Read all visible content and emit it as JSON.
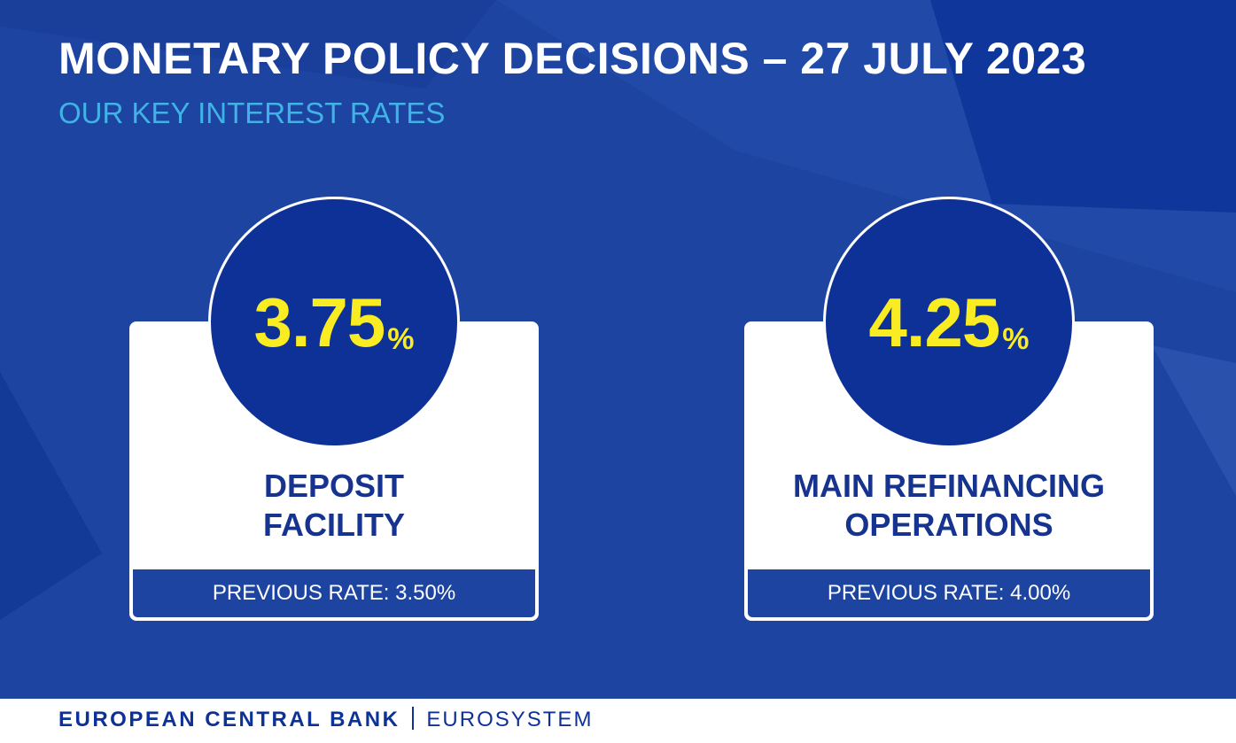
{
  "header": {
    "title": "MONETARY POLICY DECISIONS – 27 JULY 2023",
    "subtitle": "OUR KEY INTEREST RATES"
  },
  "rates": [
    {
      "value": "3.75",
      "unit": "%",
      "label_line1": "DEPOSIT",
      "label_line2": "FACILITY",
      "previous": "PREVIOUS RATE: 3.50%"
    },
    {
      "value": "4.25",
      "unit": "%",
      "label_line1": "MAIN REFINANCING",
      "label_line2": "OPERATIONS",
      "previous": "PREVIOUS RATE: 4.00%"
    }
  ],
  "footer": {
    "bank": "EUROPEAN CENTRAL BANK",
    "system": "EUROSYSTEM"
  },
  "colors": {
    "background": "#1d44a1",
    "circle": "#0d3197",
    "rate_text": "#f9ec22",
    "subtitle": "#41b2e6",
    "label_text": "#16348f"
  }
}
